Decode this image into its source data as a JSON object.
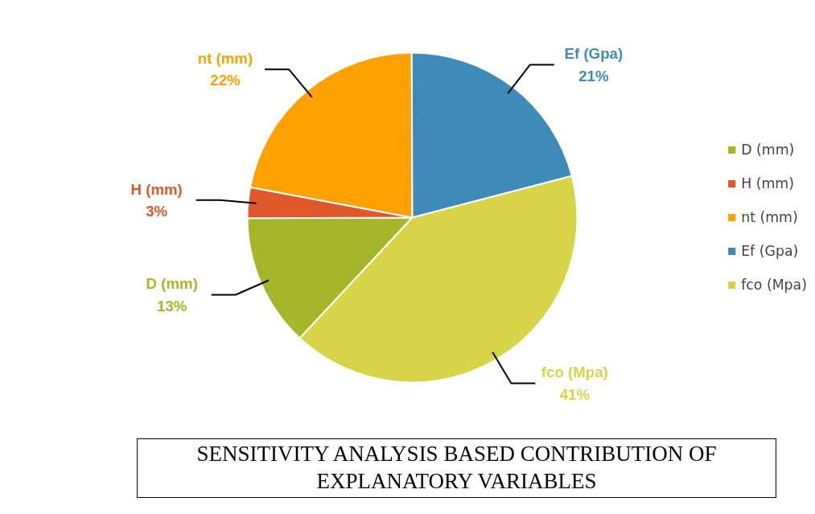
{
  "chart_data": {
    "type": "pie",
    "title": "SENSITIVITY ANALYSIS  BASED CONTRIBUTION OF EXPLANATORY VARIABLES",
    "categories": [
      "D (mm)",
      "H (mm)",
      "nt (mm)",
      "Ef (Gpa)",
      "fco (Mpa)"
    ],
    "values": [
      13,
      3,
      22,
      21,
      41
    ],
    "colors": [
      "#a5b62a",
      "#e0582a",
      "#ffa100",
      "#3e8ab8",
      "#d7d448"
    ],
    "value_labels": [
      "13%",
      "3%",
      "22%",
      "21%",
      "41%"
    ],
    "legend": "right"
  }
}
